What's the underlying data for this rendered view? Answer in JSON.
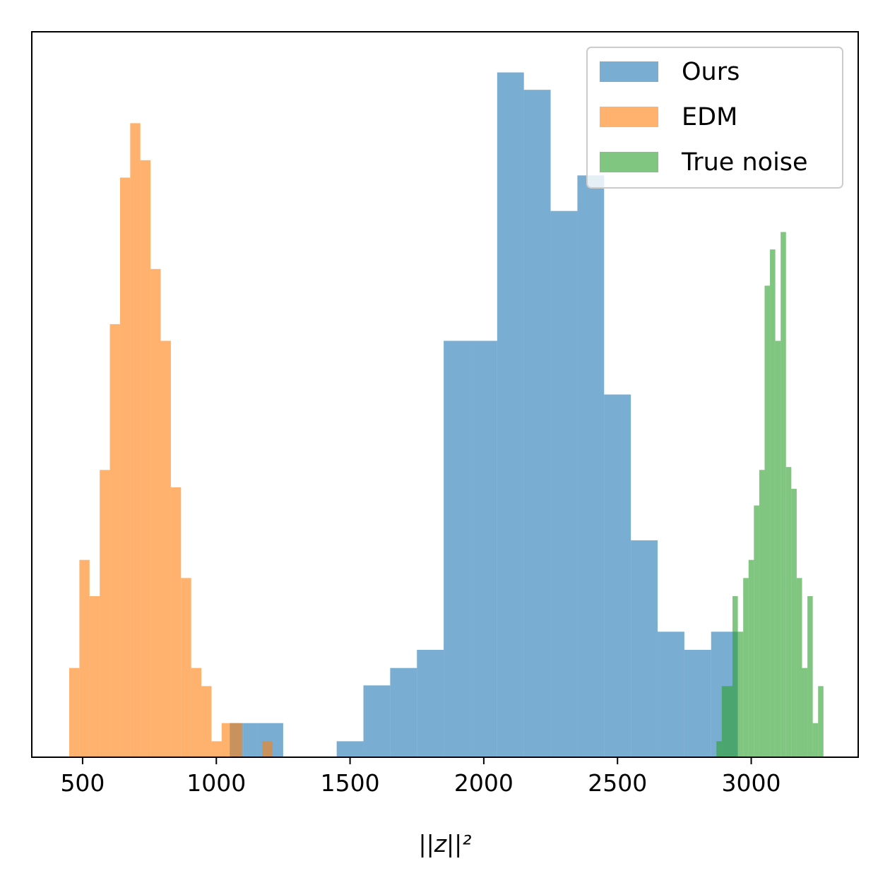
{
  "chart_data": {
    "type": "histogram",
    "xlabel": "||z||²",
    "xlim": [
      310,
      3400
    ],
    "ylim": [
      0,
      100
    ],
    "xticks": [
      500,
      1000,
      1500,
      2000,
      2500,
      3000
    ],
    "y_ticks_shown": false,
    "grid": false,
    "legend_position": "top-right",
    "series": [
      {
        "name": "Ours",
        "color": "#1f77b4",
        "opacity": 0.6,
        "bins": [
          {
            "x0": 1050,
            "x1": 1100,
            "count": 4.7
          },
          {
            "x0": 1100,
            "x1": 1150,
            "count": 4.7
          },
          {
            "x0": 1150,
            "x1": 1200,
            "count": 4.7
          },
          {
            "x0": 1200,
            "x1": 1250,
            "count": 4.7
          },
          {
            "x0": 1450,
            "x1": 1550,
            "count": 2.2
          },
          {
            "x0": 1550,
            "x1": 1650,
            "count": 9.9
          },
          {
            "x0": 1650,
            "x1": 1750,
            "count": 12.3
          },
          {
            "x0": 1750,
            "x1": 1850,
            "count": 14.8
          },
          {
            "x0": 1850,
            "x1": 1950,
            "count": 57.4
          },
          {
            "x0": 1950,
            "x1": 2050,
            "count": 57.4
          },
          {
            "x0": 2050,
            "x1": 2150,
            "count": 94.4
          },
          {
            "x0": 2150,
            "x1": 2250,
            "count": 92.0
          },
          {
            "x0": 2250,
            "x1": 2350,
            "count": 75.3
          },
          {
            "x0": 2350,
            "x1": 2450,
            "count": 80.2
          },
          {
            "x0": 2450,
            "x1": 2550,
            "count": 50.0
          },
          {
            "x0": 2550,
            "x1": 2650,
            "count": 29.9
          },
          {
            "x0": 2650,
            "x1": 2750,
            "count": 17.3
          },
          {
            "x0": 2750,
            "x1": 2850,
            "count": 14.8
          },
          {
            "x0": 2850,
            "x1": 2950,
            "count": 17.3
          }
        ]
      },
      {
        "name": "EDM",
        "color": "#ff7f0e",
        "opacity": 0.6,
        "bins": [
          {
            "x0": 450,
            "x1": 488,
            "count": 12.3
          },
          {
            "x0": 488,
            "x1": 526,
            "count": 27.2
          },
          {
            "x0": 526,
            "x1": 564,
            "count": 22.2
          },
          {
            "x0": 564,
            "x1": 602,
            "count": 39.6
          },
          {
            "x0": 602,
            "x1": 640,
            "count": 59.7
          },
          {
            "x0": 640,
            "x1": 678,
            "count": 79.9
          },
          {
            "x0": 678,
            "x1": 716,
            "count": 87.4
          },
          {
            "x0": 716,
            "x1": 754,
            "count": 82.3
          },
          {
            "x0": 754,
            "x1": 792,
            "count": 67.3
          },
          {
            "x0": 792,
            "x1": 830,
            "count": 57.4
          },
          {
            "x0": 830,
            "x1": 868,
            "count": 37.2
          },
          {
            "x0": 868,
            "x1": 906,
            "count": 24.7
          },
          {
            "x0": 906,
            "x1": 944,
            "count": 12.3
          },
          {
            "x0": 944,
            "x1": 982,
            "count": 9.8
          },
          {
            "x0": 982,
            "x1": 1020,
            "count": 2.2
          },
          {
            "x0": 1020,
            "x1": 1058,
            "count": 4.7
          },
          {
            "x0": 1058,
            "x1": 1096,
            "count": 4.7
          },
          {
            "x0": 1172,
            "x1": 1210,
            "count": 2.2
          }
        ]
      },
      {
        "name": "True noise",
        "color": "#2ca02c",
        "opacity": 0.6,
        "bins": [
          {
            "x0": 2870,
            "x1": 2890,
            "count": 2.2
          },
          {
            "x0": 2890,
            "x1": 2910,
            "count": 9.8
          },
          {
            "x0": 2910,
            "x1": 2930,
            "count": 9.8
          },
          {
            "x0": 2930,
            "x1": 2950,
            "count": 22.2
          },
          {
            "x0": 2950,
            "x1": 2970,
            "count": 17.3
          },
          {
            "x0": 2970,
            "x1": 2990,
            "count": 24.7
          },
          {
            "x0": 2990,
            "x1": 3010,
            "count": 27.2
          },
          {
            "x0": 3010,
            "x1": 3030,
            "count": 34.7
          },
          {
            "x0": 3030,
            "x1": 3050,
            "count": 39.6
          },
          {
            "x0": 3050,
            "x1": 3070,
            "count": 65.0
          },
          {
            "x0": 3070,
            "x1": 3090,
            "count": 70.0
          },
          {
            "x0": 3090,
            "x1": 3110,
            "count": 57.4
          },
          {
            "x0": 3110,
            "x1": 3130,
            "count": 72.4
          },
          {
            "x0": 3130,
            "x1": 3150,
            "count": 40.0
          },
          {
            "x0": 3150,
            "x1": 3170,
            "count": 37.0
          },
          {
            "x0": 3170,
            "x1": 3190,
            "count": 24.7
          },
          {
            "x0": 3190,
            "x1": 3210,
            "count": 12.3
          },
          {
            "x0": 3210,
            "x1": 3230,
            "count": 22.2
          },
          {
            "x0": 3230,
            "x1": 3250,
            "count": 4.7
          },
          {
            "x0": 3250,
            "x1": 3270,
            "count": 9.8
          }
        ]
      }
    ]
  }
}
